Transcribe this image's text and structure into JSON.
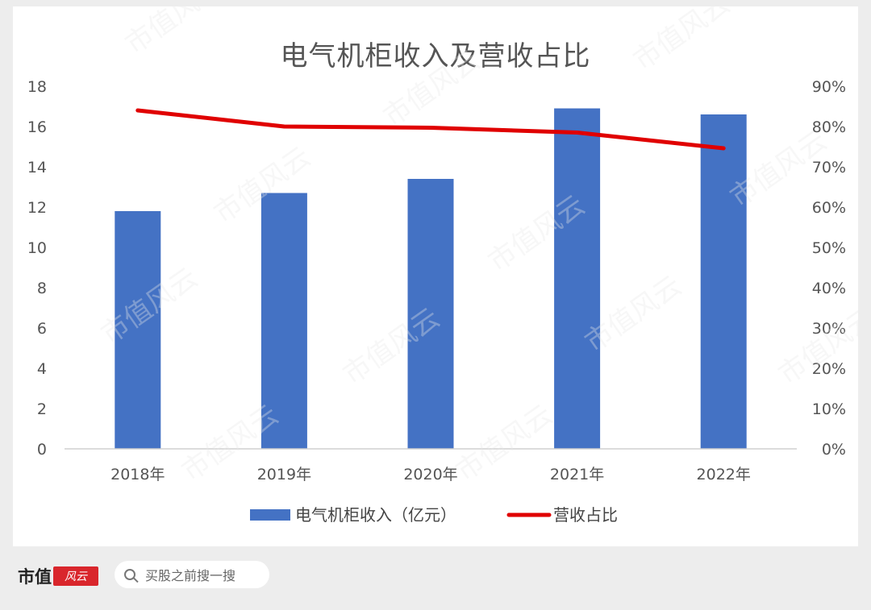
{
  "title": "电气机柜收入及营收占比",
  "footer": {
    "brand": "市值",
    "seal": "风云",
    "search_text": "买股之前搜一搜"
  },
  "chart_data": {
    "type": "bar",
    "categories": [
      "2018年",
      "2019年",
      "2020年",
      "2021年",
      "2022年"
    ],
    "series": [
      {
        "name": "电气机柜收入（亿元）",
        "type": "bar",
        "axis": "left",
        "color": "#4472c4",
        "values": [
          11.8,
          12.7,
          13.4,
          16.9,
          16.6
        ]
      },
      {
        "name": "营收占比",
        "type": "line",
        "axis": "right",
        "color": "#e00000",
        "values": [
          0.84,
          0.8,
          0.797,
          0.785,
          0.746
        ]
      }
    ],
    "y_left": {
      "min": 0,
      "max": 18,
      "step": 2,
      "ticks": [
        "0",
        "2",
        "4",
        "6",
        "8",
        "10",
        "12",
        "14",
        "16",
        "18"
      ]
    },
    "y_right": {
      "min": 0,
      "max": 0.9,
      "step": 0.1,
      "ticks": [
        "0%",
        "10%",
        "20%",
        "30%",
        "40%",
        "50%",
        "60%",
        "70%",
        "80%",
        "90%"
      ]
    },
    "grid": false,
    "legend_position": "bottom"
  },
  "watermark": "市值风云"
}
